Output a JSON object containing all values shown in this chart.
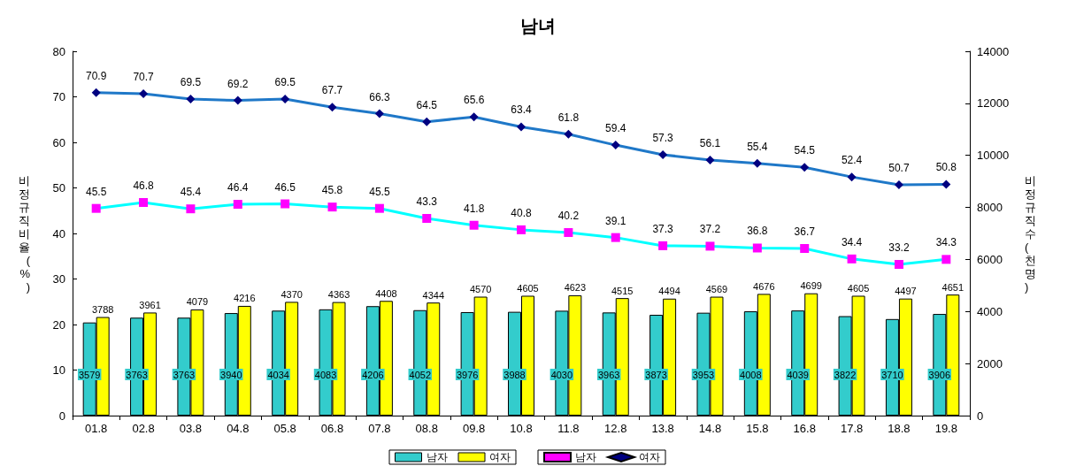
{
  "chart_data": {
    "type": "bar",
    "title": "남녀",
    "ylabel": "비정규직비율(%)",
    "y2label": "비정규직수(천명)",
    "categories": [
      "01.8",
      "02.8",
      "03.8",
      "04.8",
      "05.8",
      "06.8",
      "07.8",
      "08.8",
      "09.8",
      "10.8",
      "11.8",
      "12.8",
      "13.8",
      "14.8",
      "15.8",
      "16.8",
      "17.8",
      "18.8",
      "19.8"
    ],
    "series": [
      {
        "name": "남자",
        "axis": "y2",
        "color": "#33cccc",
        "values": [
          3579,
          3763,
          3763,
          3940,
          4034,
          4083,
          4206,
          4052,
          3976,
          3988,
          4030,
          3963,
          3873,
          3953,
          4008,
          4039,
          3822,
          3710,
          3906
        ]
      },
      {
        "name": "여자",
        "axis": "y2",
        "color": "#ffff00",
        "values": [
          3788,
          3961,
          4079,
          4216,
          4370,
          4363,
          4408,
          4344,
          4570,
          4605,
          4623,
          4515,
          4494,
          4569,
          4676,
          4699,
          4605,
          4497,
          4651
        ]
      },
      {
        "name": "남자",
        "type": "line",
        "marker": "square",
        "color": "#00ffff",
        "colors": [
          "#ff00ff",
          "#ff00ff",
          "#ff00ff",
          "#ff00ff",
          "#ff00ff",
          "#ff00ff",
          "#ff00ff",
          "#ff00ff",
          "#ff00ff",
          "#ff00ff",
          "#ff00ff",
          "#ff00ff",
          "#ff00ff",
          "#ff00ff",
          "#ff00ff",
          "#ff00ff",
          "#ff00ff",
          "#ff00ff",
          "#ff00ff"
        ],
        "values": [
          45.5,
          46.8,
          45.4,
          46.4,
          46.5,
          45.8,
          45.5,
          43.3,
          41.8,
          40.8,
          40.2,
          39.1,
          37.3,
          37.2,
          36.8,
          36.7,
          34.4,
          33.2,
          34.3
        ]
      },
      {
        "name": "여자",
        "type": "line",
        "marker": "diamond",
        "color": "#1f78c8",
        "colors": [
          "#000080",
          "#000080",
          "#000080",
          "#000080",
          "#000080",
          "#000080",
          "#000080",
          "#000080",
          "#000080",
          "#000080",
          "#000080",
          "#000080",
          "#000080",
          "#000080",
          "#000080",
          "#000080",
          "#000080",
          "#000080",
          "#000080"
        ],
        "values": [
          70.9,
          70.7,
          69.5,
          69.2,
          69.5,
          67.7,
          66.3,
          64.5,
          65.6,
          63.4,
          61.8,
          59.4,
          57.3,
          56.1,
          55.4,
          54.5,
          52.4,
          50.7,
          50.8
        ]
      }
    ],
    "ylim": [
      0,
      80
    ],
    "yticks": [
      0,
      10,
      20,
      30,
      40,
      50,
      60,
      70,
      80
    ],
    "y2lim": [
      0,
      14000
    ],
    "y2ticks": [
      0,
      2000,
      4000,
      6000,
      8000,
      10000,
      12000,
      14000
    ],
    "data_labels": true,
    "grid": false,
    "legend": "bottom"
  }
}
